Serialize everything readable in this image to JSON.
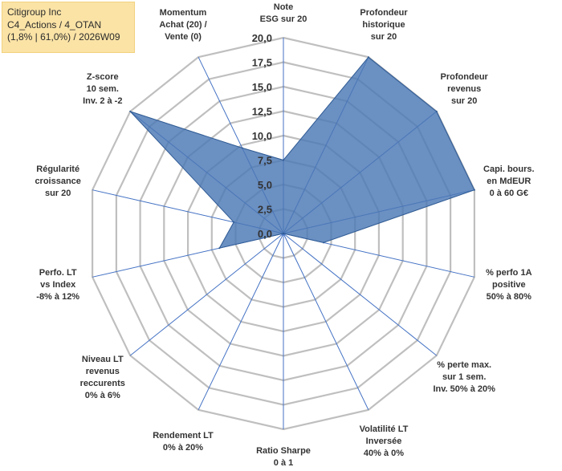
{
  "chart_data": {
    "type": "radar",
    "title_box": {
      "line1": "Citigroup Inc",
      "line2": "C4_Actions / 4_OTAN",
      "line3": "(1,8% | 61,0%) / 2026W09"
    },
    "r_min": 0,
    "r_max": 20,
    "r_step": 2.5,
    "tick_labels": [
      "0,0",
      "2,5",
      "5,0",
      "7,5",
      "10,0",
      "12,5",
      "15,0",
      "17,5",
      "20,0"
    ],
    "axes": [
      {
        "lines": [
          "Note",
          "ESG sur 20"
        ],
        "value": 7.5
      },
      {
        "lines": [
          "Profondeur",
          "historique",
          "sur 20"
        ],
        "value": 20
      },
      {
        "lines": [
          "Profondeur",
          "revenus",
          "sur 20"
        ],
        "value": 20
      },
      {
        "lines": [
          "Capi. bours.",
          "en MdEUR",
          "0 à 60 G€"
        ],
        "value": 20
      },
      {
        "lines": [
          "% perfo 1A",
          "positive",
          "50% à 80%"
        ],
        "value": 4.2
      },
      {
        "lines": [
          "% perte max.",
          "sur 1 sem.",
          "Inv. 50% à 20%"
        ],
        "value": 0
      },
      {
        "lines": [
          "Volatilité LT",
          "Inversée",
          "40% à 0%"
        ],
        "value": 0
      },
      {
        "lines": [
          "Ratio Sharpe",
          "0 à 1"
        ],
        "value": 0
      },
      {
        "lines": [
          "Rendement LT",
          "0% à 20%"
        ],
        "value": 0
      },
      {
        "lines": [
          "Niveau LT",
          "revenus",
          "reccurents",
          "0% à 6%"
        ],
        "value": 0
      },
      {
        "lines": [
          "Perfo. LT",
          "vs Index",
          "-8% à 12%"
        ],
        "value": 6.7
      },
      {
        "lines": [
          "Régularité",
          "croissance",
          "sur 20"
        ],
        "value": 5.2
      },
      {
        "lines": [
          "Z-score",
          "10 sem.",
          "Inv. 2 à -2"
        ],
        "value": 20
      },
      {
        "lines": [
          "Momentum",
          "Achat (20) /",
          "Vente (0)"
        ],
        "value": 9.7
      }
    ],
    "colors": {
      "fill": "#4a77b4",
      "stroke": "#2f5b94",
      "grid": "#bfbfbf",
      "axis": "#4472c4"
    }
  }
}
